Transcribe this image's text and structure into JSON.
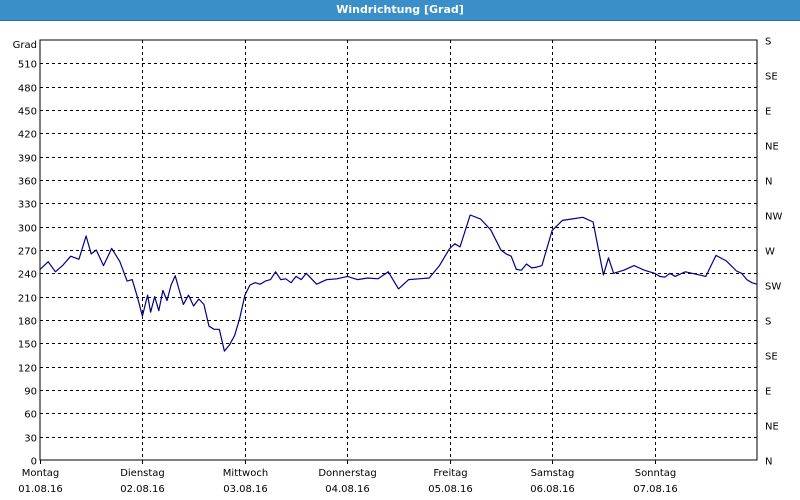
{
  "window": {
    "title": "Windrichtung [Grad]"
  },
  "chart_data": {
    "type": "line",
    "title": "Windrichtung [Grad]",
    "ylabel": "Grad",
    "ylim": [
      0,
      540
    ],
    "xlim": [
      0,
      7
    ],
    "yticks": [
      0,
      30,
      60,
      90,
      120,
      150,
      180,
      210,
      240,
      270,
      300,
      330,
      360,
      390,
      420,
      450,
      480,
      510
    ],
    "right_ticks": [
      {
        "value": 0,
        "label": "N"
      },
      {
        "value": 45,
        "label": "NE"
      },
      {
        "value": 90,
        "label": "E"
      },
      {
        "value": 135,
        "label": "SE"
      },
      {
        "value": 180,
        "label": "S"
      },
      {
        "value": 225,
        "label": "SW"
      },
      {
        "value": 270,
        "label": "W"
      },
      {
        "value": 315,
        "label": "NW"
      },
      {
        "value": 360,
        "label": "N"
      },
      {
        "value": 405,
        "label": "NE"
      },
      {
        "value": 450,
        "label": "E"
      },
      {
        "value": 495,
        "label": "SE"
      },
      {
        "value": 540,
        "label": "S"
      }
    ],
    "x_ticks": [
      {
        "day": "Montag",
        "date": "01.08.16"
      },
      {
        "day": "Dienstag",
        "date": "02.08.16"
      },
      {
        "day": "Mittwoch",
        "date": "03.08.16"
      },
      {
        "day": "Donnerstag",
        "date": "04.08.16"
      },
      {
        "day": "Freitag",
        "date": "05.08.16"
      },
      {
        "day": "Samstag",
        "date": "06.08.16"
      },
      {
        "day": "Sonntag",
        "date": "07.08.16"
      }
    ],
    "grid": true,
    "line_color": "#00008b",
    "series": [
      {
        "x": [
          0,
          0.08,
          0.15,
          0.22,
          0.3,
          0.38,
          0.45,
          0.5,
          0.55,
          0.62,
          0.7,
          0.78,
          0.85,
          0.9,
          0.95,
          1.0,
          1.05,
          1.08,
          1.12,
          1.16,
          1.2,
          1.24,
          1.28,
          1.32,
          1.36,
          1.4,
          1.45,
          1.5,
          1.55,
          1.6,
          1.65,
          1.7,
          1.75,
          1.8,
          1.85,
          1.9,
          1.95,
          2.0,
          2.05,
          2.1,
          2.15,
          2.2,
          2.25,
          2.3,
          2.35,
          2.4,
          2.45,
          2.5,
          2.55,
          2.6,
          2.7,
          2.8,
          2.9,
          3.0,
          3.1,
          3.2,
          3.3,
          3.4,
          3.5,
          3.6,
          3.7,
          3.8,
          3.9,
          4.0,
          4.05,
          4.1,
          4.2,
          4.3,
          4.4,
          4.5,
          4.55,
          4.6,
          4.65,
          4.7,
          4.75,
          4.8,
          4.85,
          4.9,
          5.0,
          5.1,
          5.2,
          5.3,
          5.4,
          5.5,
          5.55,
          5.6,
          5.7,
          5.8,
          5.9,
          6.0,
          6.05,
          6.1,
          6.15,
          6.2,
          6.3,
          6.4,
          6.5,
          6.6,
          6.7,
          6.8,
          6.85,
          6.9,
          6.95,
          7.0
        ],
        "values": [
          245,
          255,
          242,
          250,
          262,
          258,
          288,
          265,
          270,
          250,
          272,
          255,
          230,
          232,
          210,
          185,
          212,
          190,
          210,
          192,
          218,
          205,
          225,
          237,
          218,
          200,
          212,
          198,
          207,
          200,
          172,
          168,
          168,
          140,
          148,
          160,
          182,
          212,
          225,
          228,
          226,
          230,
          232,
          242,
          232,
          233,
          228,
          236,
          232,
          240,
          226,
          232,
          233,
          236,
          232,
          234,
          233,
          242,
          220,
          232,
          233,
          234,
          250,
          272,
          278,
          274,
          315,
          310,
          296,
          270,
          265,
          262,
          245,
          244,
          252,
          247,
          248,
          250,
          295,
          308,
          310,
          312,
          306,
          238,
          260,
          240,
          244,
          250,
          244,
          240,
          236,
          235,
          240,
          236,
          242,
          239,
          236,
          263,
          256,
          243,
          240,
          232,
          228,
          226
        ]
      }
    ]
  }
}
